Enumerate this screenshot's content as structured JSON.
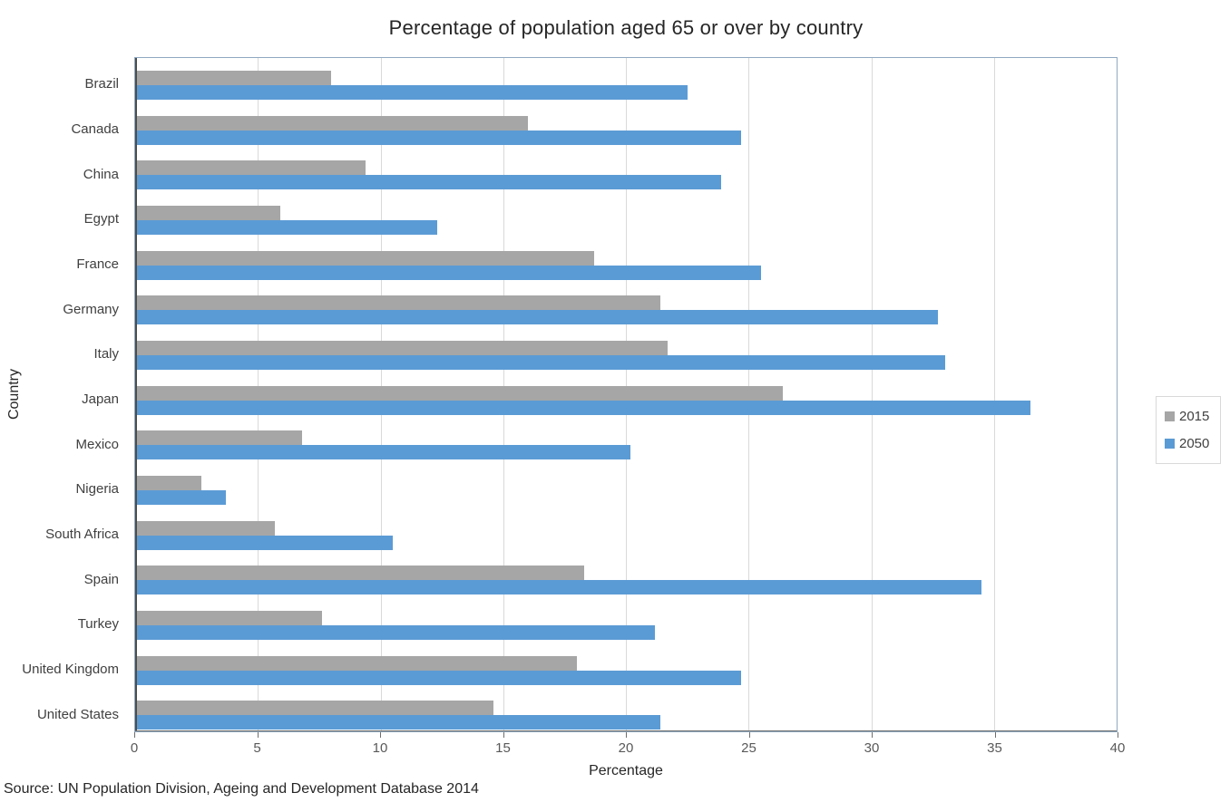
{
  "title": "Percentage of population aged 65 or over by country",
  "source_note": "Source: UN Population Division, Ageing and Development Database 2014",
  "colors": {
    "series_2015": "#A6A6A6",
    "series_2050": "#5B9BD5",
    "gridline": "#D9D9D9",
    "plot_border": "#8FA8C0",
    "axis_line": "#4D4D4D",
    "tick_label": "#595959",
    "category_label": "#404040",
    "text": "#262626"
  },
  "chart_data": {
    "type": "bar",
    "orientation": "horizontal",
    "title": "Percentage of population aged 65 or over by country",
    "xlabel": "Percentage",
    "ylabel": "Country",
    "xlim": [
      0,
      40
    ],
    "xticks": [
      0,
      5,
      10,
      15,
      20,
      25,
      30,
      35,
      40
    ],
    "grid": true,
    "legend_position": "right",
    "categories": [
      "Brazil",
      "Canada",
      "China",
      "Egypt",
      "France",
      "Germany",
      "Italy",
      "Japan",
      "Mexico",
      "Nigeria",
      "South Africa",
      "Spain",
      "Turkey",
      "United Kingdom",
      "United States"
    ],
    "series": [
      {
        "name": "2015",
        "color": "#A6A6A6",
        "values": [
          8.0,
          16.0,
          9.4,
          5.9,
          18.7,
          21.4,
          21.7,
          26.4,
          6.8,
          2.7,
          5.7,
          18.3,
          7.6,
          18.0,
          14.6
        ]
      },
      {
        "name": "2050",
        "color": "#5B9BD5",
        "values": [
          22.5,
          24.7,
          23.9,
          12.3,
          25.5,
          32.7,
          33.0,
          36.5,
          20.2,
          3.7,
          10.5,
          34.5,
          21.2,
          24.7,
          21.4
        ]
      }
    ]
  }
}
